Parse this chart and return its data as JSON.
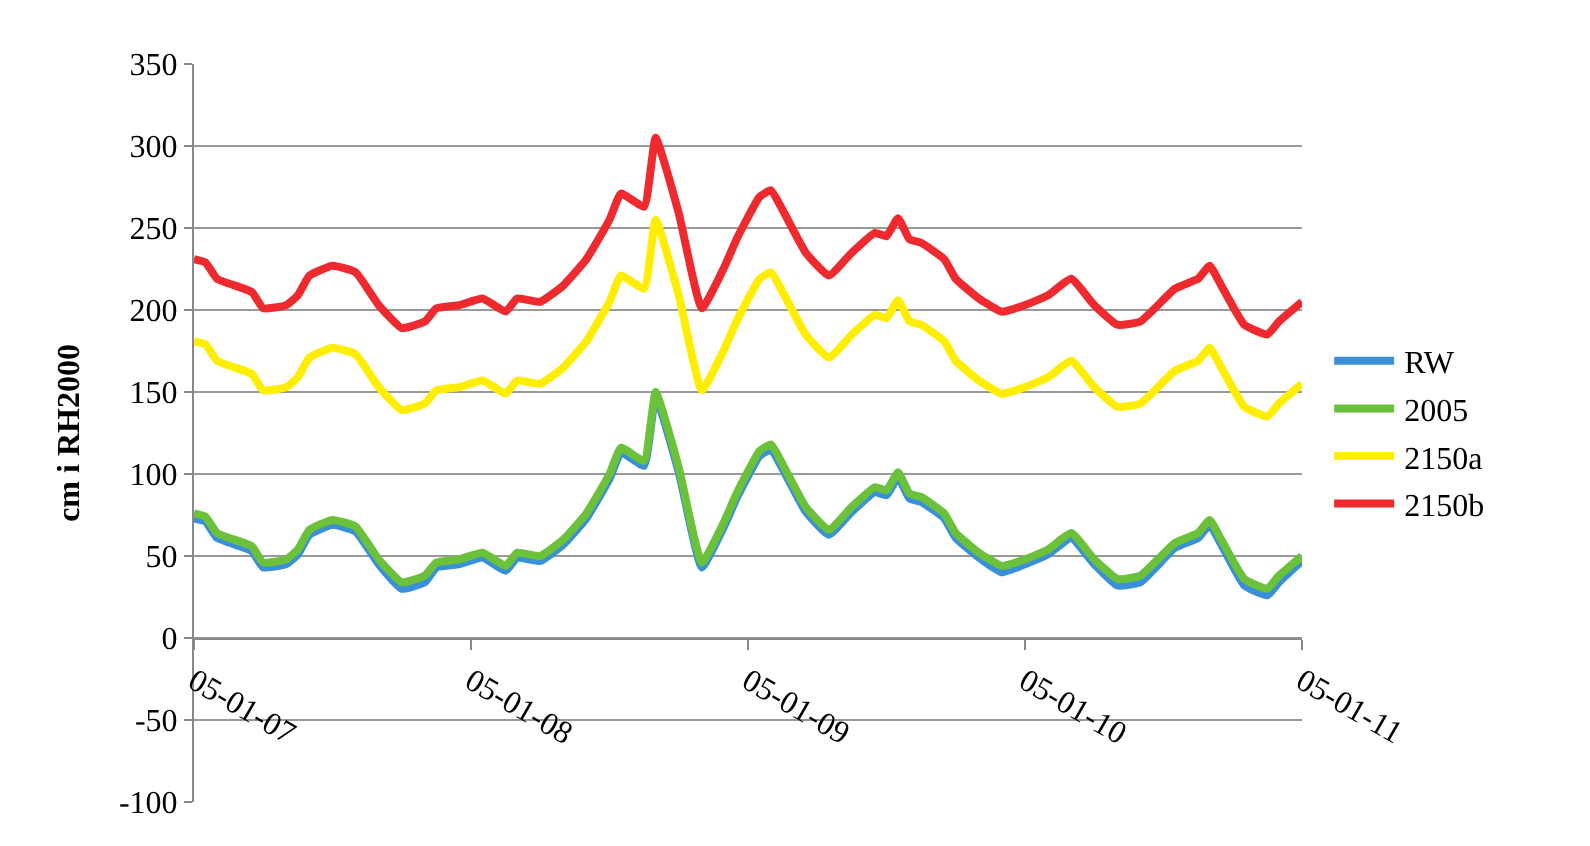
{
  "chart_data": {
    "type": "line",
    "ylabel": "cm i RH2000",
    "x": [
      "2005-01-07T00:00",
      "2005-01-07T01:00",
      "2005-01-07T02:00",
      "2005-01-07T05:00",
      "2005-01-07T06:00",
      "2005-01-07T08:00",
      "2005-01-07T09:00",
      "2005-01-07T10:00",
      "2005-01-07T12:00",
      "2005-01-07T14:00",
      "2005-01-07T16:00",
      "2005-01-07T18:00",
      "2005-01-07T20:00",
      "2005-01-07T21:00",
      "2005-01-07T23:00",
      "2005-01-08T01:00",
      "2005-01-08T03:00",
      "2005-01-08T04:00",
      "2005-01-08T06:00",
      "2005-01-08T08:00",
      "2005-01-08T10:00",
      "2005-01-08T12:00",
      "2005-01-08T13:00",
      "2005-01-08T15:00",
      "2005-01-08T16:00",
      "2005-01-08T18:00",
      "2005-01-08T20:00",
      "2005-01-08T22:00",
      "2005-01-08T23:00",
      "2005-01-09T01:00",
      "2005-01-09T02:00",
      "2005-01-09T03:00",
      "2005-01-09T05:00",
      "2005-01-09T07:00",
      "2005-01-09T09:00",
      "2005-01-09T11:00",
      "2005-01-09T12:00",
      "2005-01-09T13:00",
      "2005-01-09T14:00",
      "2005-01-09T15:00",
      "2005-01-09T17:00",
      "2005-01-09T18:00",
      "2005-01-09T20:00",
      "2005-01-09T22:00",
      "2005-01-10T00:00",
      "2005-01-10T02:00",
      "2005-01-10T04:00",
      "2005-01-10T06:00",
      "2005-01-10T08:00",
      "2005-01-10T10:00",
      "2005-01-10T13:00",
      "2005-01-10T15:00",
      "2005-01-10T16:00",
      "2005-01-10T17:00",
      "2005-01-10T19:00",
      "2005-01-10T21:00",
      "2005-01-10T22:00",
      "2005-01-11T00:00"
    ],
    "series": [
      {
        "name": "RW",
        "color": "#3a8fd9",
        "values": [
          73,
          71,
          61,
          53,
          43,
          45,
          51,
          63,
          69,
          65,
          45,
          30,
          34,
          43,
          45,
          49,
          41,
          49,
          47,
          57,
          73,
          97,
          113,
          105,
          147,
          101,
          43,
          69,
          85,
          111,
          115,
          103,
          77,
          63,
          77,
          89,
          87,
          98,
          85,
          83,
          73,
          61,
          49,
          40,
          45,
          51,
          61,
          45,
          32,
          34,
          55,
          61,
          69,
          57,
          32,
          26,
          34,
          47
        ]
      },
      {
        "name": "2005",
        "color": "#6cc13a",
        "values": [
          76,
          74,
          64,
          56,
          46,
          48,
          54,
          66,
          72,
          68,
          48,
          34,
          38,
          46,
          48,
          52,
          44,
          52,
          50,
          60,
          76,
          100,
          116,
          108,
          150,
          104,
          46,
          72,
          88,
          114,
          118,
          106,
          80,
          66,
          80,
          92,
          90,
          101,
          88,
          86,
          76,
          64,
          52,
          44,
          48,
          54,
          64,
          48,
          36,
          38,
          58,
          64,
          72,
          60,
          36,
          30,
          38,
          50
        ]
      },
      {
        "name": "2150a",
        "color": "#ffee00",
        "values": [
          181,
          179,
          169,
          161,
          151,
          153,
          159,
          171,
          177,
          173,
          153,
          139,
          143,
          151,
          153,
          157,
          149,
          157,
          155,
          165,
          181,
          205,
          221,
          213,
          255,
          209,
          151,
          177,
          193,
          219,
          223,
          211,
          185,
          171,
          185,
          197,
          195,
          206,
          193,
          191,
          181,
          169,
          157,
          149,
          153,
          159,
          169,
          153,
          141,
          143,
          163,
          169,
          177,
          165,
          141,
          135,
          143,
          155
        ]
      },
      {
        "name": "2150b",
        "color": "#ee2a2f",
        "values": [
          231,
          229,
          219,
          211,
          201,
          203,
          209,
          221,
          227,
          223,
          203,
          189,
          193,
          201,
          203,
          207,
          199,
          207,
          205,
          215,
          231,
          255,
          271,
          263,
          305,
          259,
          201,
          227,
          243,
          269,
          273,
          261,
          235,
          221,
          235,
          247,
          245,
          256,
          243,
          241,
          231,
          219,
          207,
          199,
          203,
          209,
          219,
          203,
          191,
          193,
          213,
          219,
          227,
          215,
          191,
          185,
          193,
          205
        ]
      }
    ],
    "xlim": [
      "2005-01-07",
      "2005-01-11"
    ],
    "xticks": [
      {
        "value": "2005-01-07",
        "label": "05-01-07"
      },
      {
        "value": "2005-01-08",
        "label": "05-01-08"
      },
      {
        "value": "2005-01-09",
        "label": "05-01-09"
      },
      {
        "value": "2005-01-10",
        "label": "05-01-10"
      },
      {
        "value": "2005-01-11",
        "label": "05-01-11"
      }
    ],
    "ylim": [
      -100,
      350
    ],
    "yticks": [
      -100,
      -50,
      0,
      50,
      100,
      150,
      200,
      250,
      300,
      350
    ],
    "grid": "y",
    "legend": "right",
    "marker": "none",
    "line_style": "solid"
  }
}
